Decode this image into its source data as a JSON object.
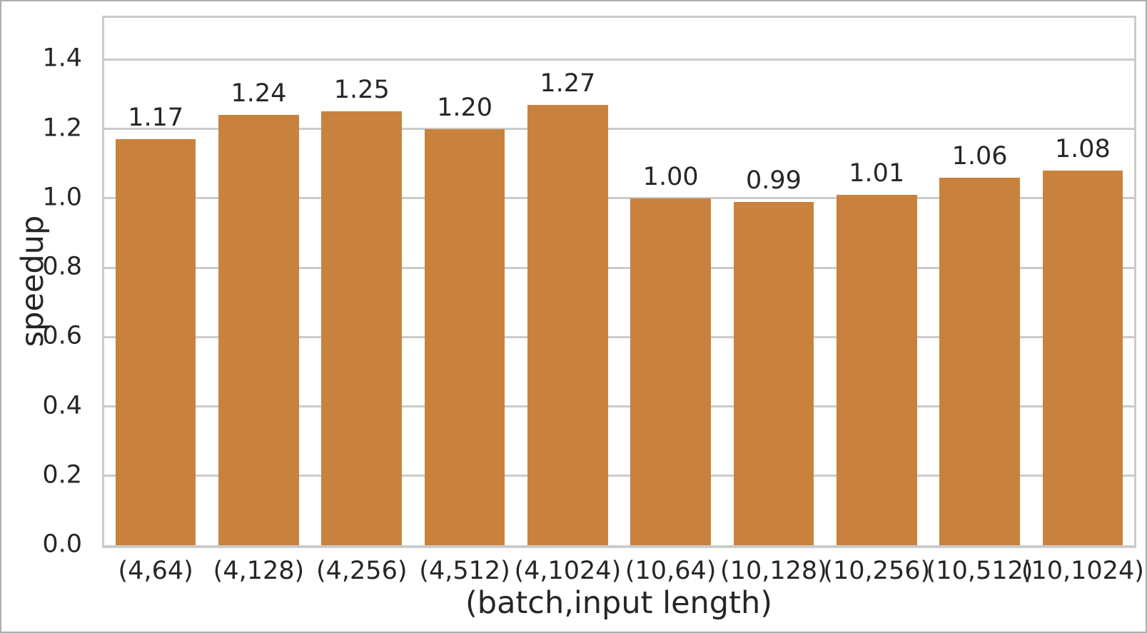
{
  "figure": {
    "background_color": "#ffffff",
    "border_color": "#aeaeae"
  },
  "chart_data": {
    "type": "bar",
    "title": "",
    "categories": [
      "(4,64)",
      "(4,128)",
      "(4,256)",
      "(4,512)",
      "(4,1024)",
      "(10,64)",
      "(10,128)",
      "(10,256)",
      "(10,512)",
      "(10,1024)"
    ],
    "values": [
      1.17,
      1.24,
      1.25,
      1.2,
      1.27,
      1.0,
      0.99,
      1.01,
      1.06,
      1.08
    ],
    "bar_labels": [
      "1.17",
      "1.24",
      "1.25",
      "1.20",
      "1.27",
      "1.00",
      "0.99",
      "1.01",
      "1.06",
      "1.08"
    ],
    "xlabel": "(batch,input length)",
    "ylabel": "speedup",
    "ylim": [
      0,
      1.52
    ],
    "yticks": [
      0.0,
      0.2,
      0.4,
      0.6,
      0.8,
      1.0,
      1.2,
      1.4
    ],
    "ytick_labels": [
      "0.0",
      "0.2",
      "0.4",
      "0.6",
      "0.8",
      "1.0",
      "1.2",
      "1.4"
    ],
    "grid": true,
    "legend": null,
    "bar_color": "#c9823e",
    "grid_color": "#cbcbcb",
    "text_color": "#262626",
    "bar_width_fraction": 0.78
  }
}
